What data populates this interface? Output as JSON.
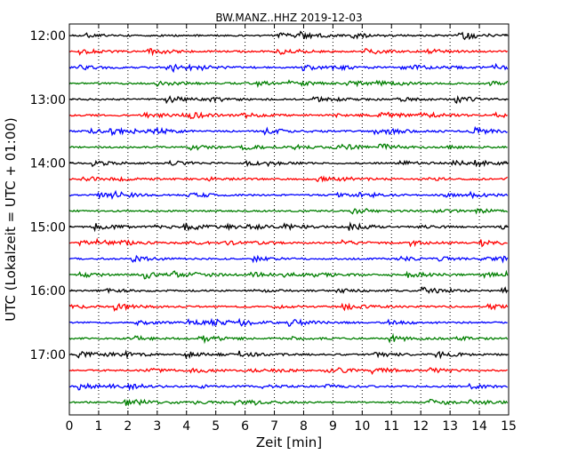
{
  "chart_data": {
    "type": "line",
    "title": "BW.MANZ..HHZ 2019-12-03",
    "xlabel": "Zeit  [min]",
    "ylabel": "UTC (Lokalzeit = UTC + 01:00)",
    "xlim": [
      0,
      15
    ],
    "x_ticks": [
      "0",
      "1",
      "2",
      "3",
      "4",
      "5",
      "6",
      "7",
      "8",
      "9",
      "10",
      "11",
      "12",
      "13",
      "14",
      "15"
    ],
    "y_tick_labels": [
      "12:00",
      "13:00",
      "14:00",
      "15:00",
      "16:00",
      "17:00"
    ],
    "rows_start": "12:00",
    "row_interval_minutes": 15,
    "row_count": 24,
    "grid": "vertical-dotted",
    "trace_colors": [
      "#000000",
      "#ff0000",
      "#0000ff",
      "#007f00"
    ]
  }
}
